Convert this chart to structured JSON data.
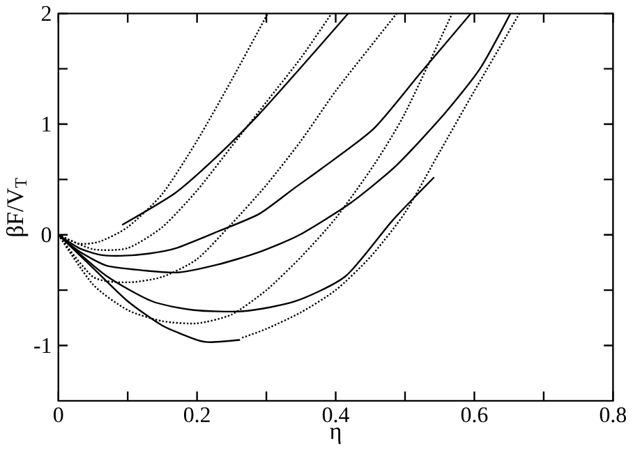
{
  "chart_data": {
    "type": "line",
    "xlabel": "η",
    "ylabel": "βF/V$_{T}$",
    "xlim": [
      0,
      0.8
    ],
    "ylim": [
      -1.5,
      2
    ],
    "xticks": [
      0,
      {
        "value": 0.1,
        "label": null
      },
      0.2,
      {
        "value": 0.3,
        "label": null
      },
      0.4,
      {
        "value": 0.5,
        "label": null
      },
      0.6,
      {
        "value": 0.7,
        "label": null
      },
      0.8
    ],
    "yticks": [
      -1,
      {
        "value": -0.5,
        "label": null
      },
      0,
      {
        "value": 0.5,
        "label": null
      },
      1,
      {
        "value": 1.5,
        "label": null
      },
      2
    ],
    "grid": false,
    "marker": "none",
    "series": [
      {
        "color": "#000000",
        "line_style": "solid",
        "x": [
          0.092,
          0.169,
          0.229,
          0.288,
          0.348,
          0.418
        ],
        "values": [
          0.09,
          0.38,
          0.71,
          1.08,
          1.5,
          2.0
        ]
      },
      {
        "color": "#000000",
        "line_style": "solid",
        "x": [
          0,
          0.03,
          0.06,
          0.09,
          0.13,
          0.17,
          0.23,
          0.29,
          0.34,
          0.38,
          0.455,
          0.522,
          0.595
        ],
        "values": [
          0,
          -0.12,
          -0.18,
          -0.19,
          -0.17,
          -0.12,
          0.03,
          0.19,
          0.42,
          0.6,
          0.96,
          1.46,
          2.0
        ]
      },
      {
        "color": "#000000",
        "line_style": "solid",
        "x": [
          0,
          0.03,
          0.07,
          0.12,
          0.172,
          0.229,
          0.288,
          0.348,
          0.422,
          0.488,
          0.555,
          0.608,
          0.652
        ],
        "values": [
          0,
          -0.15,
          -0.28,
          -0.32,
          -0.34,
          -0.27,
          -0.16,
          0,
          0.29,
          0.63,
          1.08,
          1.5,
          2.0
        ]
      },
      {
        "color": "#000000",
        "line_style": "solid",
        "x": [
          0,
          0.069,
          0.135,
          0.195,
          0.268,
          0.342,
          0.415,
          0.482,
          0.542
        ],
        "values": [
          0,
          -0.37,
          -0.6,
          -0.68,
          -0.69,
          -0.6,
          -0.37,
          0.13,
          0.52
        ]
      },
      {
        "color": "#000000",
        "line_style": "solid",
        "x": [
          0,
          0.05,
          0.1,
          0.15,
          0.2,
          0.22,
          0.262
        ],
        "values": [
          0,
          -0.3,
          -0.6,
          -0.82,
          -0.95,
          -0.97,
          -0.95
        ]
      },
      {
        "color": "#000000",
        "line_style": "dotted",
        "x": [
          0,
          0.03,
          0.06,
          0.1,
          0.15,
          0.2,
          0.25,
          0.302
        ],
        "values": [
          0,
          -0.08,
          -0.06,
          0.07,
          0.37,
          0.85,
          1.4,
          2.0
        ]
      },
      {
        "color": "#000000",
        "line_style": "dotted",
        "x": [
          0,
          0.05,
          0.1,
          0.15,
          0.2,
          0.25,
          0.3,
          0.35,
          0.394
        ],
        "values": [
          0,
          -0.13,
          -0.12,
          0.07,
          0.4,
          0.8,
          1.2,
          1.6,
          2.0
        ]
      },
      {
        "color": "#000000",
        "line_style": "dotted",
        "x": [
          0,
          0.05,
          0.1,
          0.15,
          0.2,
          0.25,
          0.3,
          0.35,
          0.4,
          0.45,
          0.488
        ],
        "values": [
          0,
          -0.38,
          -0.43,
          -0.38,
          -0.22,
          0.1,
          0.45,
          0.85,
          1.3,
          1.7,
          2.0
        ]
      },
      {
        "color": "#000000",
        "line_style": "dotted",
        "x": [
          0,
          0.05,
          0.1,
          0.15,
          0.2,
          0.25,
          0.3,
          0.35,
          0.4,
          0.455,
          0.5,
          0.568
        ],
        "values": [
          0,
          -0.45,
          -0.68,
          -0.78,
          -0.8,
          -0.72,
          -0.5,
          -0.2,
          0.15,
          0.63,
          1.1,
          2.0
        ]
      },
      {
        "color": "#000000",
        "line_style": "dotted",
        "x": [
          0.265,
          0.3,
          0.35,
          0.4,
          0.45,
          0.5,
          0.55,
          0.6,
          0.665
        ],
        "values": [
          -0.93,
          -0.85,
          -0.7,
          -0.5,
          -0.2,
          0.2,
          0.75,
          1.3,
          2.0
        ]
      }
    ]
  }
}
